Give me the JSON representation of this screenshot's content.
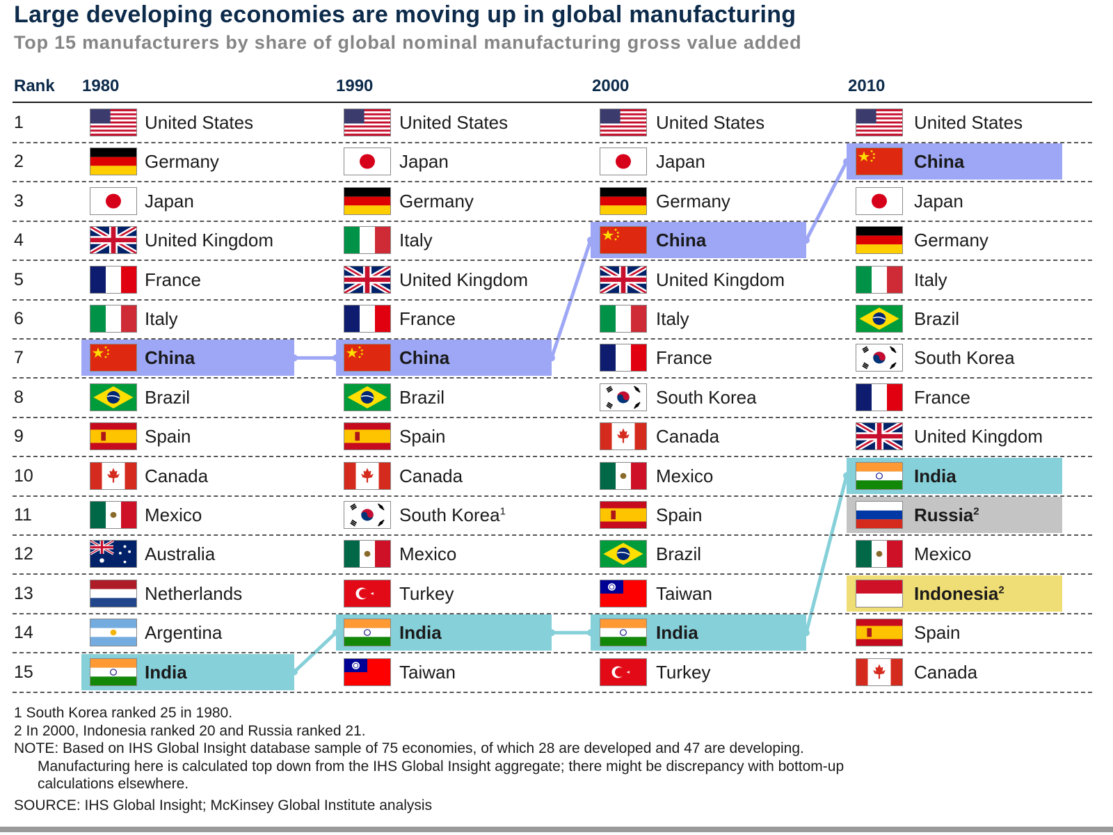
{
  "header": {
    "title": "Large developing economies are moving up in global manufacturing",
    "subtitle": "Top 15 manufacturers by share of global nominal manufacturing gross value added",
    "rank_label": "Rank"
  },
  "chart_data": {
    "type": "table",
    "title": "Large developing economies are moving up in global manufacturing",
    "subtitle": "Top 15 manufacturers by share of global nominal manufacturing gross value added",
    "columns": [
      "1980",
      "1990",
      "2000",
      "2010"
    ],
    "ranks": [
      "1",
      "2",
      "3",
      "4",
      "5",
      "6",
      "7",
      "8",
      "9",
      "10",
      "11",
      "12",
      "13",
      "14",
      "15"
    ],
    "rankings": [
      [
        {
          "name": "United States",
          "flag": "us"
        },
        {
          "name": "Germany",
          "flag": "de"
        },
        {
          "name": "Japan",
          "flag": "jp"
        },
        {
          "name": "United Kingdom",
          "flag": "uk"
        },
        {
          "name": "France",
          "flag": "fr"
        },
        {
          "name": "Italy",
          "flag": "it"
        },
        {
          "name": "China",
          "flag": "cn",
          "highlight": "china"
        },
        {
          "name": "Brazil",
          "flag": "br"
        },
        {
          "name": "Spain",
          "flag": "es"
        },
        {
          "name": "Canada",
          "flag": "ca"
        },
        {
          "name": "Mexico",
          "flag": "mx"
        },
        {
          "name": "Australia",
          "flag": "au"
        },
        {
          "name": "Netherlands",
          "flag": "nl"
        },
        {
          "name": "Argentina",
          "flag": "ar"
        },
        {
          "name": "India",
          "flag": "in",
          "highlight": "india"
        }
      ],
      [
        {
          "name": "United States",
          "flag": "us"
        },
        {
          "name": "Japan",
          "flag": "jp"
        },
        {
          "name": "Germany",
          "flag": "de"
        },
        {
          "name": "Italy",
          "flag": "it"
        },
        {
          "name": "United Kingdom",
          "flag": "uk"
        },
        {
          "name": "France",
          "flag": "fr"
        },
        {
          "name": "China",
          "flag": "cn",
          "highlight": "china"
        },
        {
          "name": "Brazil",
          "flag": "br"
        },
        {
          "name": "Spain",
          "flag": "es"
        },
        {
          "name": "Canada",
          "flag": "ca"
        },
        {
          "name": "South Korea",
          "flag": "kr",
          "note": "1"
        },
        {
          "name": "Mexico",
          "flag": "mx"
        },
        {
          "name": "Turkey",
          "flag": "tr"
        },
        {
          "name": "India",
          "flag": "in",
          "highlight": "india"
        },
        {
          "name": "Taiwan",
          "flag": "tw"
        }
      ],
      [
        {
          "name": "United States",
          "flag": "us"
        },
        {
          "name": "Japan",
          "flag": "jp"
        },
        {
          "name": "Germany",
          "flag": "de"
        },
        {
          "name": "China",
          "flag": "cn",
          "highlight": "china"
        },
        {
          "name": "United Kingdom",
          "flag": "uk"
        },
        {
          "name": "Italy",
          "flag": "it"
        },
        {
          "name": "France",
          "flag": "fr"
        },
        {
          "name": "South Korea",
          "flag": "kr"
        },
        {
          "name": "Canada",
          "flag": "ca"
        },
        {
          "name": "Mexico",
          "flag": "mx"
        },
        {
          "name": "Spain",
          "flag": "es"
        },
        {
          "name": "Brazil",
          "flag": "br"
        },
        {
          "name": "Taiwan",
          "flag": "tw"
        },
        {
          "name": "India",
          "flag": "in",
          "highlight": "india"
        },
        {
          "name": "Turkey",
          "flag": "tr"
        }
      ],
      [
        {
          "name": "United States",
          "flag": "us"
        },
        {
          "name": "China",
          "flag": "cn",
          "highlight": "china"
        },
        {
          "name": "Japan",
          "flag": "jp"
        },
        {
          "name": "Germany",
          "flag": "de"
        },
        {
          "name": "Italy",
          "flag": "it"
        },
        {
          "name": "Brazil",
          "flag": "br"
        },
        {
          "name": "South Korea",
          "flag": "kr"
        },
        {
          "name": "France",
          "flag": "fr"
        },
        {
          "name": "United Kingdom",
          "flag": "uk"
        },
        {
          "name": "India",
          "flag": "in",
          "highlight": "india"
        },
        {
          "name": "Russia",
          "flag": "ru",
          "highlight": "russia",
          "note": "2"
        },
        {
          "name": "Mexico",
          "flag": "mx"
        },
        {
          "name": "Indonesia",
          "flag": "id",
          "highlight": "indonesia",
          "note": "2"
        },
        {
          "name": "Spain",
          "flag": "es"
        },
        {
          "name": "Canada",
          "flag": "ca"
        }
      ]
    ],
    "highlight_colors": {
      "china": "#9ea7f5",
      "india": "#86d0d9",
      "russia": "#c4c4c4",
      "indonesia": "#efdd75"
    },
    "connector_colors": {
      "china": "#9ea7f5",
      "india": "#86d0d9"
    }
  },
  "footnotes": {
    "note1": "1  South Korea ranked 25 in 1980.",
    "note2": "2  In 2000, Indonesia ranked 20 and Russia ranked 21.",
    "note_line1": "NOTE: Based on IHS Global Insight database sample of 75 economies, of which 28 are developed and 47 are developing.",
    "note_line2": "Manufacturing here is calculated top down from the IHS Global Insight aggregate; there might be discrepancy with bottom-up",
    "note_line3": "calculations elsewhere.",
    "source": "SOURCE: IHS Global Insight; McKinsey Global Institute analysis"
  }
}
